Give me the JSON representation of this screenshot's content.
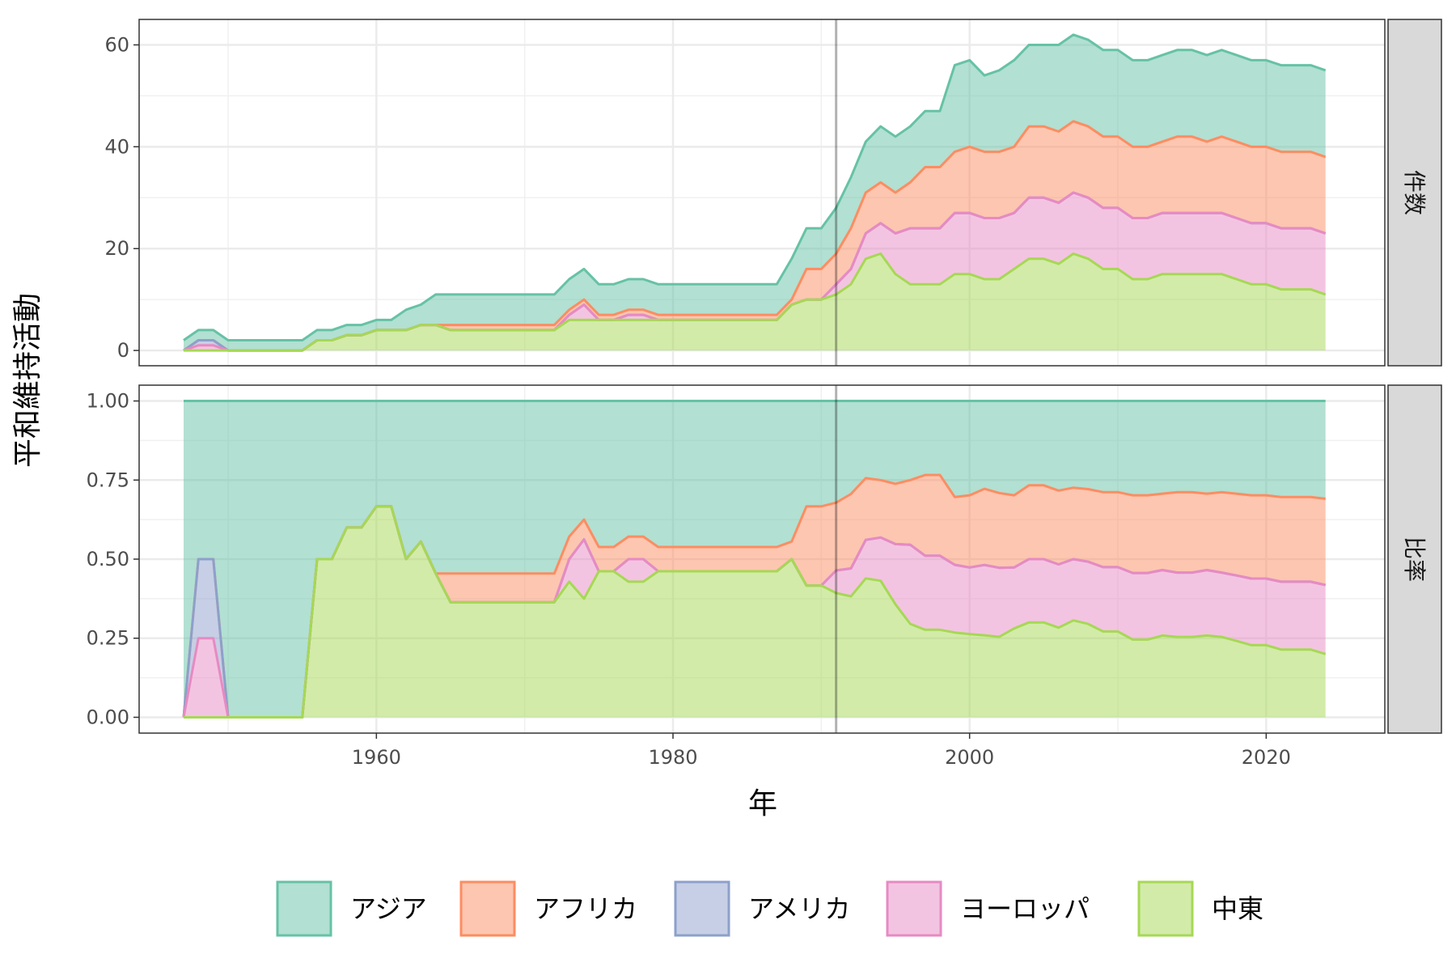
{
  "chart_data": {
    "type": "area",
    "stacked": true,
    "xlabel": "年",
    "ylabel": "平和維持活動",
    "x_ticks": [
      1960,
      1980,
      2000,
      2020
    ],
    "xlim": [
      1944,
      2028
    ],
    "grid": true,
    "legend_placement": "bottom",
    "vline_x": 1991,
    "x": [
      1947,
      1948,
      1949,
      1950,
      1951,
      1952,
      1953,
      1954,
      1955,
      1956,
      1957,
      1958,
      1959,
      1960,
      1961,
      1962,
      1963,
      1964,
      1965,
      1966,
      1967,
      1968,
      1969,
      1970,
      1971,
      1972,
      1973,
      1974,
      1975,
      1976,
      1977,
      1978,
      1979,
      1980,
      1981,
      1982,
      1983,
      1984,
      1985,
      1986,
      1987,
      1988,
      1989,
      1990,
      1991,
      1992,
      1993,
      1994,
      1995,
      1996,
      1997,
      1998,
      1999,
      2000,
      2001,
      2002,
      2003,
      2004,
      2005,
      2006,
      2007,
      2008,
      2009,
      2010,
      2011,
      2012,
      2013,
      2014,
      2015,
      2016,
      2017,
      2018,
      2019,
      2020,
      2021,
      2022,
      2023,
      2024
    ],
    "series": [
      {
        "name": "アジア",
        "color": "#66c2a5",
        "values": [
          2,
          2,
          2,
          2,
          2,
          2,
          2,
          2,
          2,
          2,
          2,
          2,
          2,
          2,
          2,
          4,
          4,
          6,
          6,
          6,
          6,
          6,
          6,
          6,
          6,
          6,
          6,
          6,
          6,
          6,
          6,
          6,
          6,
          6,
          6,
          6,
          6,
          6,
          6,
          6,
          6,
          8,
          8,
          8,
          9,
          10,
          10,
          11,
          11,
          11,
          11,
          11,
          17,
          17,
          15,
          16,
          17,
          16,
          16,
          17,
          17,
          17,
          17,
          17,
          17,
          17,
          17,
          17,
          17,
          17,
          17,
          17,
          17,
          17,
          17,
          17,
          17,
          17
        ]
      },
      {
        "name": "アフリカ",
        "color": "#fc8d62",
        "values": [
          0,
          0,
          0,
          0,
          0,
          0,
          0,
          0,
          0,
          0,
          0,
          0,
          0,
          0,
          0,
          0,
          0,
          0,
          1,
          1,
          1,
          1,
          1,
          1,
          1,
          1,
          1,
          1,
          1,
          1,
          1,
          1,
          1,
          1,
          1,
          1,
          1,
          1,
          1,
          1,
          1,
          1,
          6,
          6,
          6,
          8,
          8,
          8,
          8,
          9,
          12,
          12,
          12,
          13,
          13,
          13,
          13,
          14,
          14,
          14,
          14,
          14,
          14,
          14,
          14,
          14,
          14,
          15,
          15,
          14,
          15,
          15,
          15,
          15,
          15,
          15,
          15,
          15
        ]
      },
      {
        "name": "アメリカ",
        "color": "#8da0cb",
        "values": [
          0,
          1,
          1,
          0,
          0,
          0,
          0,
          0,
          0,
          0,
          0,
          0,
          0,
          0,
          0,
          0,
          0,
          0,
          0,
          0,
          0,
          0,
          0,
          0,
          0,
          0,
          0,
          0,
          0,
          0,
          0,
          0,
          0,
          0,
          0,
          0,
          0,
          0,
          0,
          0,
          0,
          0,
          0,
          0,
          0,
          0,
          0,
          0,
          0,
          0,
          0,
          0,
          0,
          0,
          0,
          0,
          0,
          0,
          0,
          0,
          0,
          0,
          0,
          0,
          0,
          0,
          0,
          0,
          0,
          0,
          0,
          0,
          0,
          0,
          0,
          0,
          0,
          0
        ]
      },
      {
        "name": "ヨーロッパ",
        "color": "#e78ac3",
        "values": [
          0,
          1,
          1,
          0,
          0,
          0,
          0,
          0,
          0,
          0,
          0,
          0,
          0,
          0,
          0,
          0,
          0,
          0,
          0,
          0,
          0,
          0,
          0,
          0,
          0,
          0,
          1,
          3,
          0,
          0,
          1,
          1,
          0,
          0,
          0,
          0,
          0,
          0,
          0,
          0,
          0,
          0,
          0,
          0,
          2,
          3,
          5,
          6,
          8,
          11,
          11,
          11,
          12,
          12,
          12,
          12,
          11,
          12,
          12,
          12,
          12,
          12,
          12,
          12,
          12,
          12,
          12,
          12,
          12,
          12,
          12,
          12,
          12,
          12,
          12,
          12,
          12,
          12
        ]
      },
      {
        "name": "中東",
        "color": "#a6d854",
        "values": [
          0,
          0,
          0,
          0,
          0,
          0,
          0,
          0,
          0,
          2,
          2,
          3,
          3,
          4,
          4,
          4,
          5,
          5,
          4,
          4,
          4,
          4,
          4,
          4,
          4,
          4,
          6,
          6,
          6,
          6,
          6,
          6,
          6,
          6,
          6,
          6,
          6,
          6,
          6,
          6,
          6,
          9,
          10,
          10,
          11,
          13,
          18,
          19,
          15,
          13,
          13,
          13,
          15,
          15,
          14,
          14,
          16,
          18,
          18,
          17,
          19,
          18,
          16,
          16,
          14,
          14,
          15,
          15,
          15,
          15,
          15,
          14,
          13,
          13,
          12,
          12,
          12,
          11
        ]
      }
    ],
    "panels": [
      {
        "strip": "件数",
        "measure": "count",
        "ylim": [
          -3,
          65
        ],
        "y_ticks": [
          0,
          20,
          40,
          60
        ],
        "y_tick_labels": [
          "0",
          "20",
          "40",
          "60"
        ]
      },
      {
        "strip": "比率",
        "measure": "share",
        "ylim": [
          -0.05,
          1.05
        ],
        "y_ticks": [
          0,
          0.25,
          0.5,
          0.75,
          1
        ],
        "y_tick_labels": [
          "0.00",
          "0.25",
          "0.50",
          "0.75",
          "1.00"
        ]
      }
    ]
  }
}
